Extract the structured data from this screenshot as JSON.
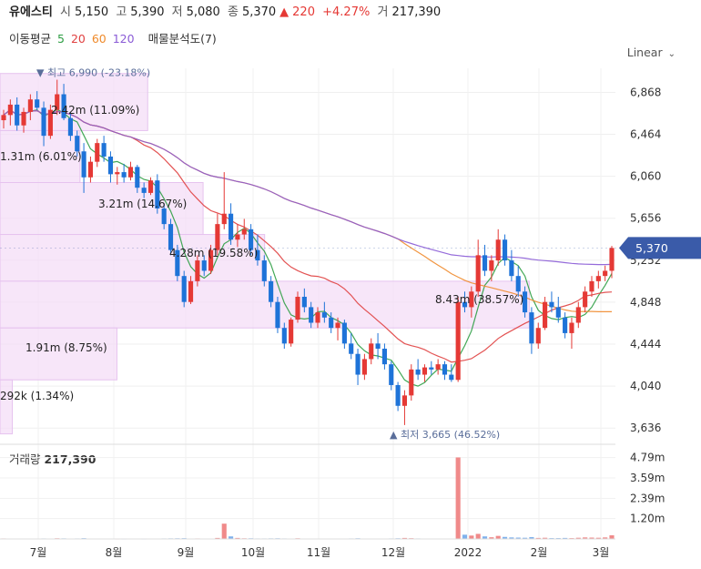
{
  "header": {
    "name": "유에스티",
    "open_label": "시",
    "open": "5,150",
    "high_label": "고",
    "high": "5,390",
    "low_label": "저",
    "low": "5,080",
    "close_label": "종",
    "close": "5,370",
    "change_arrow": "▲",
    "change": "220",
    "change_pct": "+4.27%",
    "volume_label": "거",
    "volume": "217,390"
  },
  "ma": {
    "label": "이동평균",
    "p5": "5",
    "p20": "20",
    "p60": "60",
    "p120": "120",
    "profile_label": "매물분석도(7)"
  },
  "scale_button": "Linear",
  "colors": {
    "up": "#e53935",
    "down": "#1e73d8",
    "ma5": "#2e9e44",
    "ma20": "#e04040",
    "ma60": "#ef8a2b",
    "ma120": "#8a5bd6",
    "profile": "#f3dcf7",
    "price_tag": "#3a5ba9"
  },
  "chart_data": {
    "type": "candlestick",
    "price_axis_ticks": [
      6868,
      6464,
      6060,
      5656,
      5252,
      4848,
      4444,
      4040,
      3636
    ],
    "price_axis_tick_labels": [
      "6,868",
      "6,464",
      "6,060",
      "5,656",
      "5,252",
      "4,848",
      "4,444",
      "4,040",
      "3,636"
    ],
    "ylim": [
      3550,
      7100
    ],
    "current_price_label": "5,370",
    "current_price": 5370,
    "x_tick_labels": [
      "7월",
      "8월",
      "9월",
      "10월",
      "11월",
      "12월",
      "2022",
      "2월",
      "3월"
    ],
    "annotations": {
      "high": {
        "text": "최고 6,990 (-23.18%)",
        "value": 6990
      },
      "low": {
        "text": "최저 3,665 (46.52%)",
        "value": 3665
      }
    },
    "volume_profile": [
      {
        "price_low": 6500,
        "price_high": 7050,
        "label": "2.42m (11.09%)",
        "width": 0.24
      },
      {
        "price_low": 6000,
        "price_high": 6500,
        "label": "1.31m (6.01%)",
        "width": 0.13
      },
      {
        "price_low": 5500,
        "price_high": 6000,
        "label": "3.21m (14.67%)",
        "width": 0.33
      },
      {
        "price_low": 5050,
        "price_high": 5500,
        "label": "4.28m (19.58%)",
        "width": 0.43
      },
      {
        "price_low": 4600,
        "price_high": 5050,
        "label": "8.43m (38.57%)",
        "width": 0.86
      },
      {
        "price_low": 4100,
        "price_high": 4600,
        "label": "1.91m (8.75%)",
        "width": 0.19
      },
      {
        "price_low": 3580,
        "price_high": 4100,
        "label": "292k (1.34%)",
        "width": 0.02
      }
    ],
    "candles": [
      [
        6600,
        6700,
        6520,
        6650
      ],
      [
        6650,
        6800,
        6550,
        6750
      ],
      [
        6750,
        6820,
        6500,
        6550
      ],
      [
        6550,
        6720,
        6480,
        6680
      ],
      [
        6680,
        6850,
        6600,
        6800
      ],
      [
        6800,
        6880,
        6700,
        6720
      ],
      [
        6720,
        6780,
        6350,
        6450
      ],
      [
        6450,
        6750,
        6420,
        6700
      ],
      [
        6700,
        6990,
        6650,
        6850
      ],
      [
        6850,
        6950,
        6600,
        6620
      ],
      [
        6620,
        6680,
        6400,
        6450
      ],
      [
        6450,
        6500,
        6250,
        6300
      ],
      [
        6300,
        6380,
        5900,
        6050
      ],
      [
        6050,
        6250,
        6000,
        6200
      ],
      [
        6200,
        6420,
        6150,
        6380
      ],
      [
        6380,
        6450,
        6200,
        6250
      ],
      [
        6250,
        6300,
        6000,
        6080
      ],
      [
        6080,
        6150,
        5980,
        6100
      ],
      [
        6100,
        6180,
        6000,
        6050
      ],
      [
        6050,
        6200,
        6020,
        6150
      ],
      [
        6150,
        6170,
        5900,
        5950
      ],
      [
        5950,
        6000,
        5850,
        5900
      ],
      [
        5900,
        6050,
        5880,
        6020
      ],
      [
        6020,
        6080,
        5700,
        5750
      ],
      [
        5750,
        5800,
        5550,
        5600
      ],
      [
        5600,
        5650,
        5300,
        5350
      ],
      [
        5350,
        5400,
        5050,
        5100
      ],
      [
        5100,
        5150,
        4800,
        4850
      ],
      [
        4850,
        5100,
        4830,
        5050
      ],
      [
        5050,
        5300,
        5000,
        5250
      ],
      [
        5250,
        5300,
        5100,
        5150
      ],
      [
        5150,
        5400,
        5120,
        5350
      ],
      [
        5350,
        5700,
        5300,
        5600
      ],
      [
        5600,
        6100,
        5550,
        5700
      ],
      [
        5700,
        5800,
        5400,
        5450
      ],
      [
        5450,
        5600,
        5380,
        5500
      ],
      [
        5500,
        5650,
        5450,
        5550
      ],
      [
        5550,
        5600,
        5300,
        5350
      ],
      [
        5350,
        5500,
        5200,
        5250
      ],
      [
        5250,
        5300,
        5000,
        5050
      ],
      [
        5050,
        5100,
        4800,
        4850
      ],
      [
        4850,
        4900,
        4550,
        4600
      ],
      [
        4600,
        4650,
        4400,
        4450
      ],
      [
        4450,
        4700,
        4420,
        4680
      ],
      [
        4680,
        4950,
        4650,
        4900
      ],
      [
        4900,
        4980,
        4750,
        4800
      ],
      [
        4800,
        4850,
        4600,
        4650
      ],
      [
        4650,
        4800,
        4600,
        4750
      ],
      [
        4750,
        4850,
        4650,
        4700
      ],
      [
        4700,
        4750,
        4550,
        4600
      ],
      [
        4600,
        4700,
        4480,
        4650
      ],
      [
        4650,
        4680,
        4400,
        4450
      ],
      [
        4450,
        4550,
        4300,
        4350
      ],
      [
        4350,
        4400,
        4050,
        4150
      ],
      [
        4150,
        4350,
        4100,
        4300
      ],
      [
        4300,
        4500,
        4250,
        4450
      ],
      [
        4450,
        4550,
        4300,
        4400
      ],
      [
        4400,
        4450,
        4200,
        4250
      ],
      [
        4250,
        4280,
        4000,
        4050
      ],
      [
        4050,
        4080,
        3800,
        3850
      ],
      [
        3850,
        4000,
        3665,
        3950
      ],
      [
        3950,
        4250,
        3900,
        4200
      ],
      [
        4200,
        4300,
        4100,
        4150
      ],
      [
        4150,
        4250,
        4080,
        4220
      ],
      [
        4220,
        4280,
        4150,
        4200
      ],
      [
        4200,
        4300,
        4150,
        4250
      ],
      [
        4250,
        4280,
        4100,
        4150
      ],
      [
        4150,
        4250,
        4080,
        4100
      ],
      [
        4100,
        4900,
        4080,
        4850
      ],
      [
        4850,
        4950,
        4750,
        4800
      ],
      [
        4800,
        5000,
        4700,
        4950
      ],
      [
        4950,
        5450,
        4900,
        5300
      ],
      [
        5300,
        5400,
        5100,
        5150
      ],
      [
        5150,
        5300,
        5050,
        5250
      ],
      [
        5250,
        5550,
        5200,
        5450
      ],
      [
        5450,
        5500,
        5200,
        5250
      ],
      [
        5250,
        5350,
        5050,
        5100
      ],
      [
        5100,
        5200,
        4900,
        4950
      ],
      [
        4950,
        5000,
        4700,
        4750
      ],
      [
        4750,
        4800,
        4350,
        4450
      ],
      [
        4450,
        4650,
        4400,
        4600
      ],
      [
        4600,
        4900,
        4580,
        4850
      ],
      [
        4850,
        4950,
        4750,
        4800
      ],
      [
        4800,
        4900,
        4650,
        4700
      ],
      [
        4700,
        4750,
        4500,
        4550
      ],
      [
        4550,
        4700,
        4400,
        4650
      ],
      [
        4650,
        4850,
        4600,
        4800
      ],
      [
        4800,
        5000,
        4750,
        4950
      ],
      [
        4950,
        5100,
        4900,
        5050
      ],
      [
        5050,
        5150,
        4980,
        5100
      ],
      [
        5100,
        5200,
        5050,
        5150
      ],
      [
        5150,
        5390,
        5080,
        5370
      ]
    ],
    "volume_axis_ticks": [
      "4.79m",
      "3.59m",
      "2.39m",
      "1.20m"
    ],
    "volume_axis_values": [
      4790000,
      3590000,
      2390000,
      1200000
    ],
    "volume_label": "거래량",
    "volume_value": "217,390",
    "volumes_k": [
      30,
      25,
      20,
      18,
      25,
      22,
      30,
      20,
      40,
      35,
      25,
      30,
      45,
      20,
      25,
      20,
      18,
      15,
      15,
      18,
      20,
      15,
      18,
      25,
      30,
      35,
      40,
      45,
      25,
      30,
      20,
      25,
      60,
      900,
      150,
      60,
      40,
      40,
      30,
      30,
      35,
      40,
      30,
      25,
      40,
      25,
      20,
      20,
      20,
      18,
      18,
      25,
      30,
      40,
      25,
      20,
      18,
      20,
      30,
      40,
      60,
      45,
      30,
      20,
      18,
      20,
      18,
      25,
      4800,
      250,
      200,
      300,
      150,
      100,
      180,
      120,
      90,
      80,
      70,
      110,
      60,
      70,
      50,
      50,
      60,
      50,
      70,
      90,
      80,
      70,
      90,
      217
    ]
  }
}
